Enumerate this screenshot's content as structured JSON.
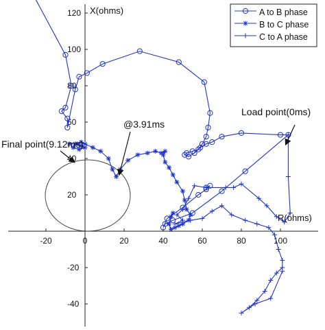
{
  "chart_data": {
    "type": "line",
    "xlabel": "R(ohms)",
    "ylabel": "X(ohms)",
    "xlim": [
      -40,
      120
    ],
    "ylim": [
      -50,
      140
    ],
    "x_ticks": [
      -20,
      0,
      20,
      40,
      60,
      80,
      100
    ],
    "y_ticks": [
      -40,
      -20,
      20,
      40,
      60,
      80,
      100,
      120
    ],
    "legend": {
      "placement": "top-right",
      "entries": [
        "A to B phase",
        "B to C phase",
        "C to A phase"
      ]
    },
    "series": [
      {
        "name": "A to B phase",
        "marker": "o",
        "color": "#1f33cc",
        "points": [
          [
            -26,
            129
          ],
          [
            -10,
            97
          ],
          [
            -7,
            80
          ],
          [
            -10,
            68
          ],
          [
            -12,
            66
          ],
          [
            -9,
            62
          ],
          [
            -9,
            57
          ],
          [
            -5,
            78
          ],
          [
            -3,
            85
          ],
          [
            1,
            87
          ],
          [
            9,
            92
          ],
          [
            28,
            99
          ],
          [
            48,
            93
          ],
          [
            61,
            82
          ],
          [
            64,
            65
          ],
          [
            63,
            57
          ],
          [
            62,
            52
          ],
          [
            60,
            48
          ],
          [
            58,
            45
          ],
          [
            55,
            44
          ],
          [
            52,
            43
          ],
          [
            51,
            42
          ],
          [
            53,
            41
          ],
          [
            56,
            43
          ],
          [
            59,
            46
          ],
          [
            62,
            48
          ],
          [
            65,
            49
          ],
          [
            70,
            52
          ],
          [
            80,
            54
          ],
          [
            100,
            53
          ],
          [
            104,
            53
          ],
          [
            82,
            33
          ],
          [
            70,
            22
          ],
          [
            55,
            10
          ],
          [
            45,
            6
          ],
          [
            41,
            4
          ],
          [
            40,
            2
          ],
          [
            42,
            7
          ],
          [
            50,
            13
          ],
          [
            58,
            20
          ],
          [
            62,
            23
          ],
          [
            64,
            25
          ],
          [
            62,
            24
          ]
        ]
      },
      {
        "name": "B to C phase",
        "marker": "*",
        "color": "#1f33cc",
        "points": [
          [
            -8,
            48
          ],
          [
            -4,
            48
          ],
          [
            -2,
            47
          ],
          [
            0,
            46
          ],
          [
            -3,
            45
          ],
          [
            -6,
            46
          ],
          [
            -5,
            48
          ],
          [
            -2,
            49
          ],
          [
            0,
            48
          ],
          [
            4,
            46
          ],
          [
            8,
            44
          ],
          [
            12,
            40
          ],
          [
            14,
            34
          ],
          [
            16,
            30
          ],
          [
            18,
            34
          ],
          [
            22,
            39
          ],
          [
            27,
            42
          ],
          [
            32,
            43
          ],
          [
            36,
            44
          ],
          [
            39,
            43
          ],
          [
            41,
            44
          ],
          [
            40,
            42
          ],
          [
            41,
            38
          ],
          [
            43,
            35
          ],
          [
            45,
            31
          ],
          [
            47,
            27
          ],
          [
            50,
            22
          ],
          [
            51,
            17
          ],
          [
            52,
            12
          ],
          [
            54,
            9
          ],
          [
            53,
            6
          ],
          [
            50,
            4
          ],
          [
            48,
            3
          ],
          [
            46,
            2
          ],
          [
            44,
            1
          ],
          [
            43,
            4
          ],
          [
            44,
            8
          ],
          [
            45,
            10
          ]
        ]
      },
      {
        "name": "C to A phase",
        "marker": "+",
        "color": "#1f33cc",
        "points": [
          [
            104,
            53
          ],
          [
            104,
            30
          ],
          [
            105,
            10
          ],
          [
            102,
            5
          ],
          [
            98,
            8
          ],
          [
            93,
            14
          ],
          [
            89,
            18
          ],
          [
            80,
            26
          ],
          [
            76,
            24
          ],
          [
            72,
            24
          ],
          [
            62,
            24
          ],
          [
            56,
            25
          ],
          [
            53,
            18
          ],
          [
            50,
            12
          ],
          [
            47,
            9
          ],
          [
            50,
            6
          ],
          [
            46,
            4
          ],
          [
            54,
            6
          ],
          [
            60,
            7
          ],
          [
            65,
            11
          ],
          [
            70,
            14
          ],
          [
            75,
            9
          ],
          [
            82,
            6
          ],
          [
            88,
            4
          ],
          [
            94,
            2
          ],
          [
            97,
            -2
          ],
          [
            99,
            -10
          ],
          [
            101,
            -16
          ],
          [
            101,
            -20
          ],
          [
            98,
            -23
          ],
          [
            95,
            -27
          ],
          [
            92,
            -33
          ],
          [
            88,
            -38
          ],
          [
            84,
            -42
          ],
          [
            80,
            -45
          ],
          [
            87,
            -40
          ],
          [
            95,
            -37
          ],
          [
            101,
            -22
          ]
        ]
      }
    ],
    "annotations": [
      {
        "text": "Load point(0ms)",
        "x": 104,
        "y": 53
      },
      {
        "text": "@3.91ms",
        "x": 16,
        "y": 30
      },
      {
        "text": "Final point(9.12ms)",
        "x": -5,
        "y": 46
      }
    ]
  }
}
